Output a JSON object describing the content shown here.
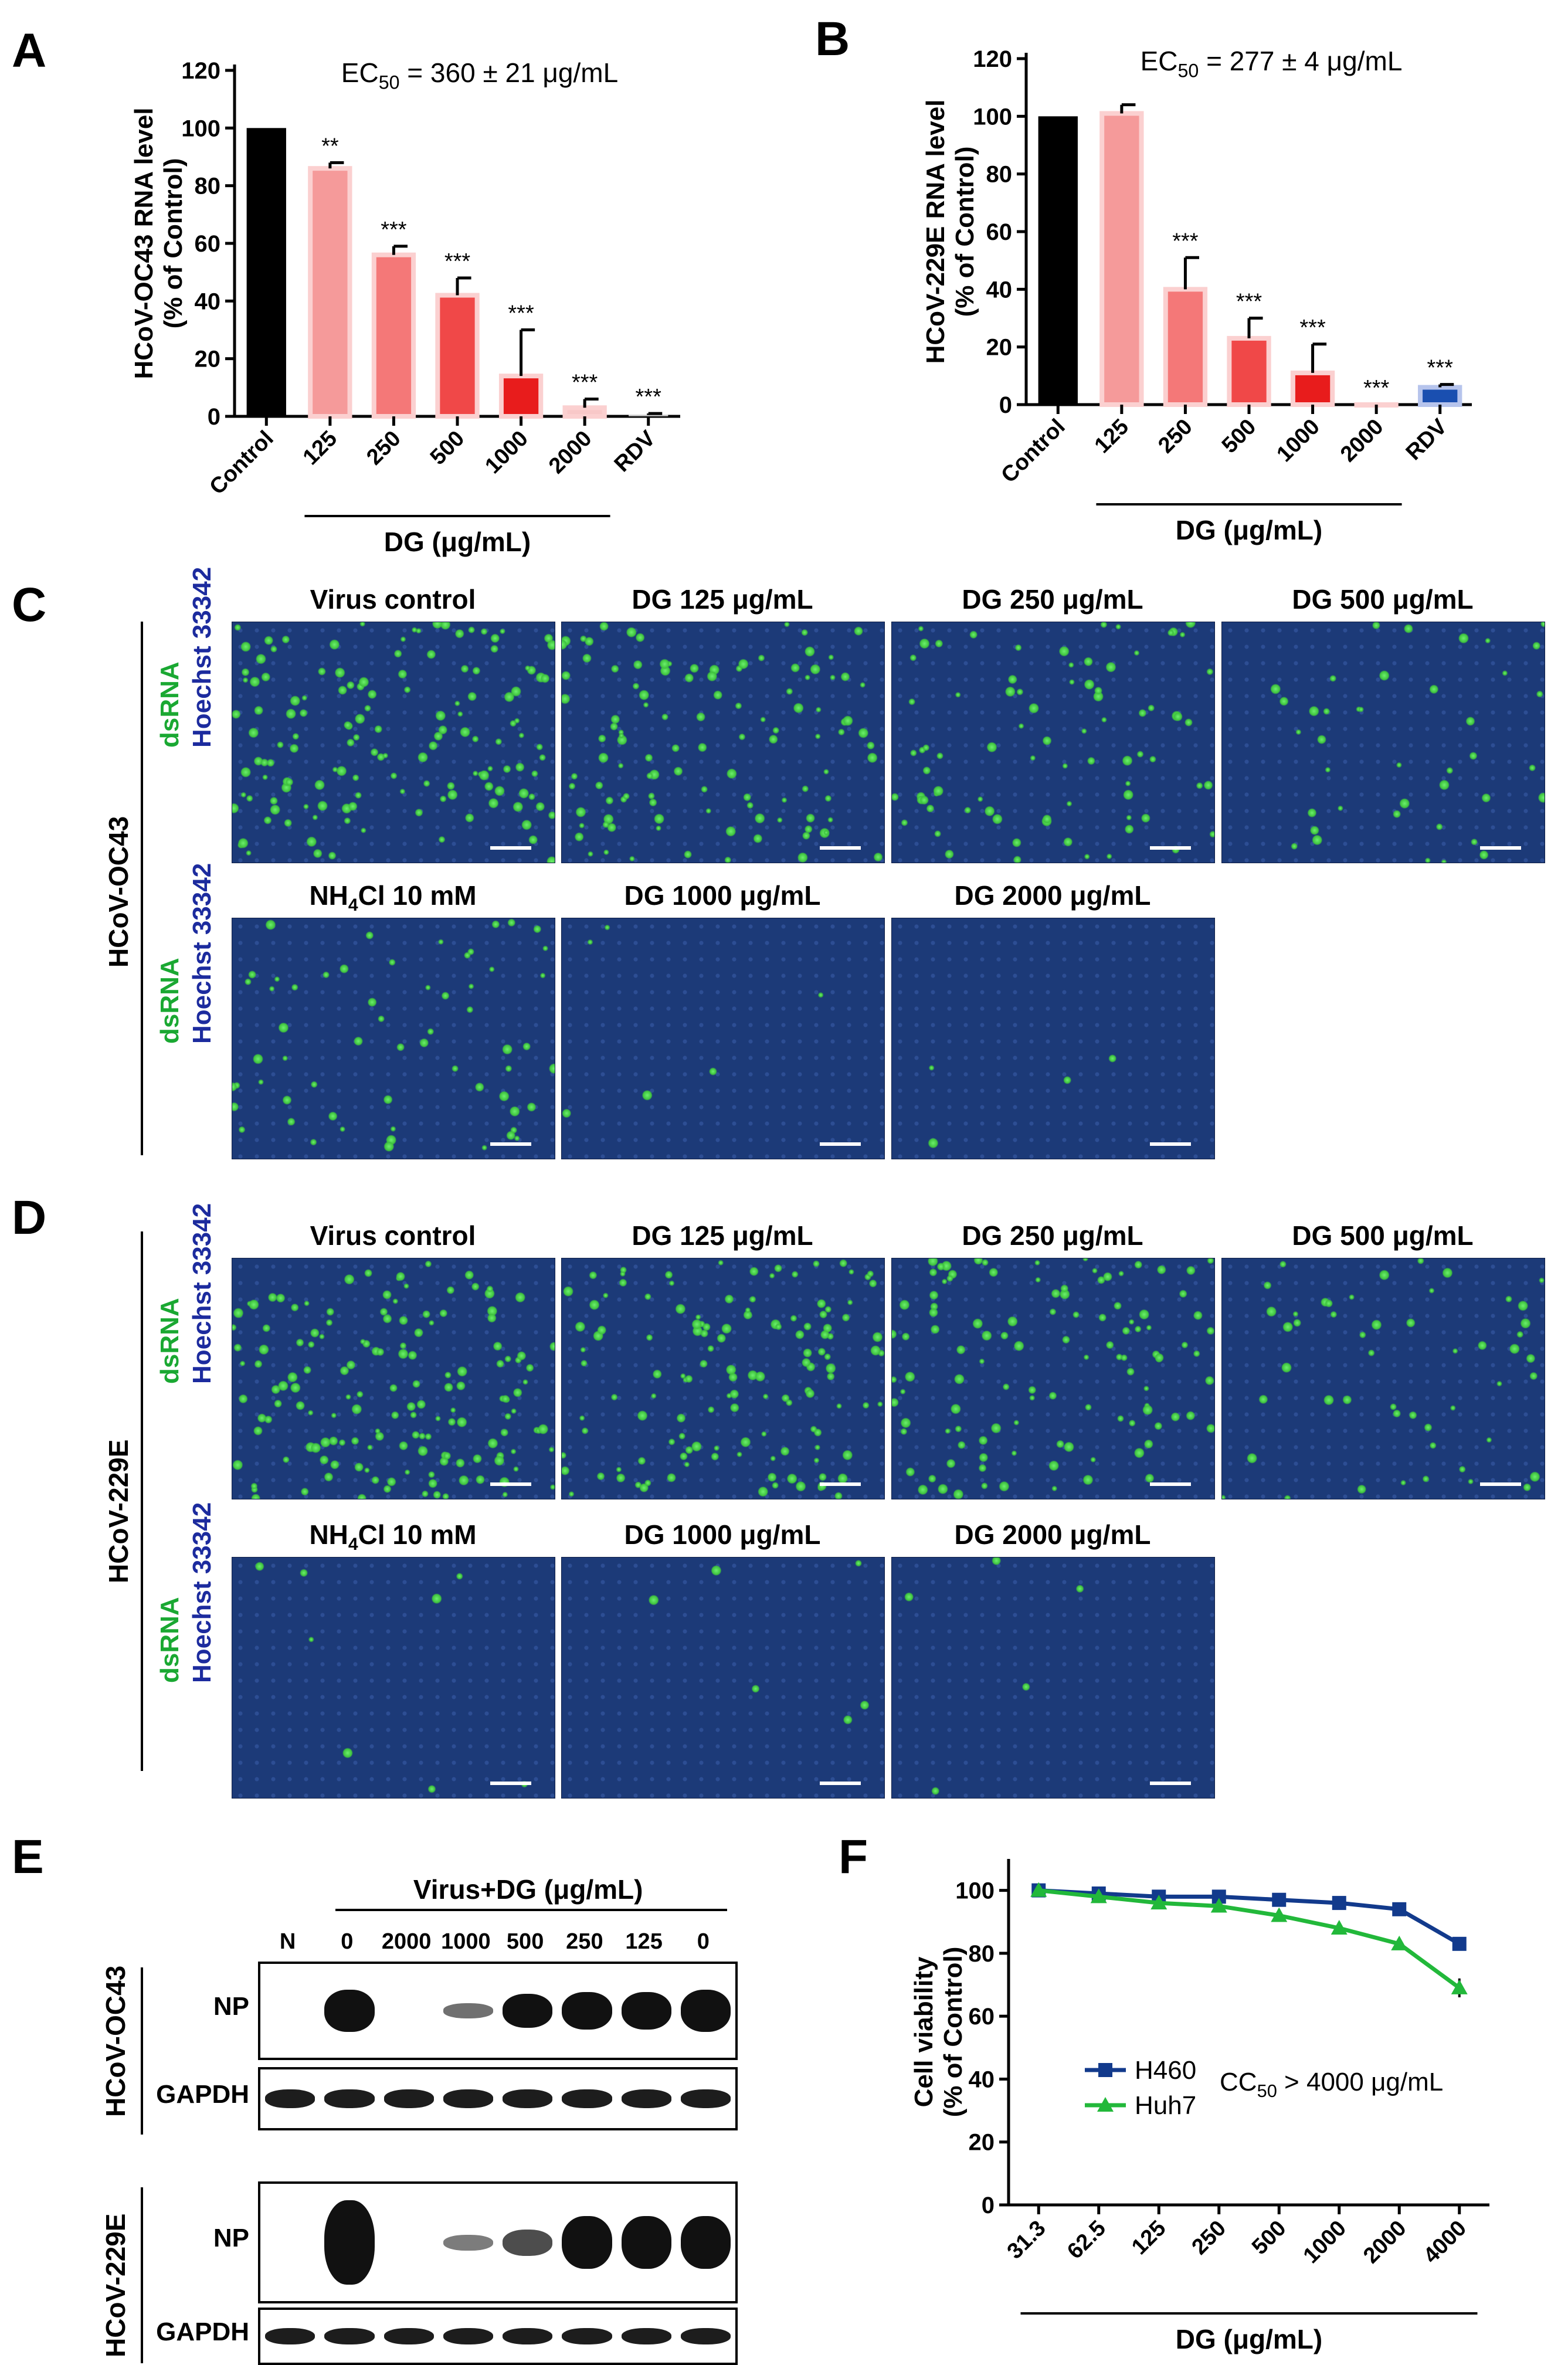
{
  "panels": {
    "a": "A",
    "b": "B",
    "c": "C",
    "d": "D",
    "e": "E",
    "f": "F"
  },
  "chart_data": [
    {
      "id": "A",
      "type": "bar",
      "categories": [
        "Control",
        "125",
        "250",
        "500",
        "1000",
        "2000",
        "RDV"
      ],
      "values": [
        100,
        86,
        56,
        42,
        14,
        3,
        0.5
      ],
      "errors": [
        0,
        2,
        3,
        6,
        16,
        3,
        0.5
      ],
      "significance": [
        "",
        "**",
        "***",
        "***",
        "***",
        "***",
        "***"
      ],
      "colors": [
        "#000000",
        "#f59a9a",
        "#f47878",
        "#f04848",
        "#e81c1c",
        "#f8c8c8",
        "#bbbbbb"
      ],
      "title": "EC50 = 360 ± 21 μg/mL",
      "title_parts": {
        "pre": "EC",
        "sub": "50",
        "post": " = 360 ± 21 μg/mL"
      },
      "ylabel_line1": "HCoV-OC43 RNA level",
      "ylabel_line2": "(% of Control)",
      "xgroup_label": "DG (μg/mL)",
      "yticks": [
        0,
        20,
        40,
        60,
        80,
        100,
        120
      ],
      "ylim": [
        0,
        120
      ]
    },
    {
      "id": "B",
      "type": "bar",
      "categories": [
        "Control",
        "125",
        "250",
        "500",
        "1000",
        "2000",
        "RDV"
      ],
      "values": [
        100,
        101,
        40,
        23,
        11,
        0,
        6
      ],
      "errors": [
        0,
        3,
        11,
        7,
        10,
        0,
        1
      ],
      "significance": [
        "",
        "",
        "***",
        "***",
        "***",
        "***",
        "***"
      ],
      "colors": [
        "#000000",
        "#f59a9a",
        "#f47878",
        "#f04848",
        "#e81c1c",
        "#f8c8c8",
        "#1a4fb0"
      ],
      "title": "EC50 = 277 ± 4 μg/mL",
      "title_parts": {
        "pre": "EC",
        "sub": "50",
        "post": " = 277 ± 4 μg/mL"
      },
      "ylabel_line1": "HCoV-229E RNA level",
      "ylabel_line2": "(% of Control)",
      "xgroup_label": "DG (μg/mL)",
      "yticks": [
        0,
        20,
        40,
        60,
        80,
        100,
        120
      ],
      "ylim": [
        0,
        120
      ]
    },
    {
      "id": "F",
      "type": "line",
      "categories": [
        "31.3",
        "62.5",
        "125",
        "250",
        "500",
        "1000",
        "2000",
        "4000"
      ],
      "series": [
        {
          "name": "H460",
          "values": [
            100,
            99,
            98,
            98,
            97,
            96,
            94,
            83
          ],
          "errors": [
            2,
            1,
            2,
            1,
            1,
            1,
            1,
            1
          ],
          "color": "#123a8c"
        },
        {
          "name": "Huh7",
          "values": [
            100,
            98,
            96,
            95,
            92,
            88,
            83,
            69
          ],
          "errors": [
            2,
            2,
            2,
            2,
            2,
            2,
            1,
            3
          ],
          "color": "#22b83a"
        }
      ],
      "annotation": "CC50 > 4000 μg/mL",
      "annotation_parts": {
        "pre": "CC",
        "sub": "50",
        "post": " > 4000 μg/mL"
      },
      "ylabel_line1": "Cell viability",
      "ylabel_line2": "(% of Control)",
      "xlabel": "DG (μg/mL)",
      "yticks": [
        0,
        20,
        40,
        60,
        80,
        100
      ],
      "ylim": [
        0,
        110
      ]
    }
  ],
  "microscopy": {
    "c_side": "HCoV-OC43",
    "d_side": "HCoV-229E",
    "stain_green": "dsRNA",
    "stain_blue": "Hoechst 33342",
    "c_row1": [
      "Virus control",
      "DG 125 μg/mL",
      "DG 250 μg/mL",
      "DG 500 μg/mL"
    ],
    "c_row2": [
      "NH4Cl 10 mM",
      "DG 1000 μg/mL",
      "DG 2000 μg/mL"
    ],
    "d_row1": [
      "Virus control",
      "DG 125 μg/mL",
      "DG 250 μg/mL",
      "DG 500 μg/mL"
    ],
    "d_row2": [
      "NH4Cl 10 mM",
      "DG 1000 μg/mL",
      "DG 2000 μg/mL"
    ],
    "nh4cl": {
      "pre": "NH",
      "sub": "4",
      "post": "Cl 10 mM"
    }
  },
  "blot": {
    "header": "Virus+DG (μg/mL)",
    "lanes": [
      "N",
      "0",
      "2000",
      "1000",
      "500",
      "250",
      "125",
      "0"
    ],
    "virus1": "HCoV-OC43",
    "virus2": "HCoV-229E",
    "row_np": "NP",
    "row_gapdh": "GAPDH"
  }
}
